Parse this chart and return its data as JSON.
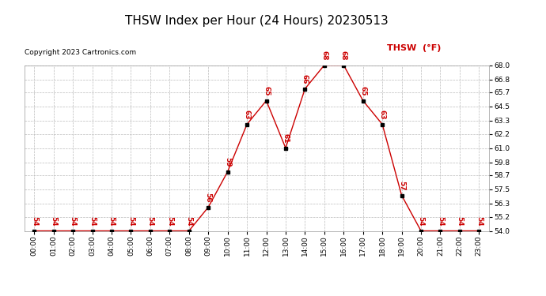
{
  "title": "THSW Index per Hour (24 Hours) 20230513",
  "copyright": "Copyright 2023 Cartronics.com",
  "legend_label": "THSW  (°F)",
  "hours": [
    0,
    1,
    2,
    3,
    4,
    5,
    6,
    7,
    8,
    9,
    10,
    11,
    12,
    13,
    14,
    15,
    16,
    17,
    18,
    19,
    20,
    21,
    22,
    23
  ],
  "hour_labels": [
    "00:00",
    "01:00",
    "02:00",
    "03:00",
    "04:00",
    "05:00",
    "06:00",
    "07:00",
    "08:00",
    "09:00",
    "10:00",
    "11:00",
    "12:00",
    "13:00",
    "14:00",
    "15:00",
    "16:00",
    "17:00",
    "18:00",
    "19:00",
    "20:00",
    "21:00",
    "22:00",
    "23:00"
  ],
  "values": [
    54,
    54,
    54,
    54,
    54,
    54,
    54,
    54,
    54,
    56,
    59,
    63,
    65,
    61,
    66,
    68,
    68,
    65,
    63,
    57,
    54,
    54,
    54,
    54
  ],
  "line_color": "#cc0000",
  "marker_color": "#000000",
  "label_color": "#cc0000",
  "ylim_min": 54.0,
  "ylim_max": 68.0,
  "ytick_values": [
    54.0,
    55.2,
    56.3,
    57.5,
    58.7,
    59.8,
    61.0,
    62.2,
    63.3,
    64.5,
    65.7,
    66.8,
    68.0
  ],
  "bg_color": "#ffffff",
  "grid_color": "#bbbbbb",
  "title_fontsize": 11,
  "copyright_fontsize": 6.5,
  "legend_fontsize": 8,
  "label_fontsize": 6.5,
  "tick_fontsize": 6.5
}
